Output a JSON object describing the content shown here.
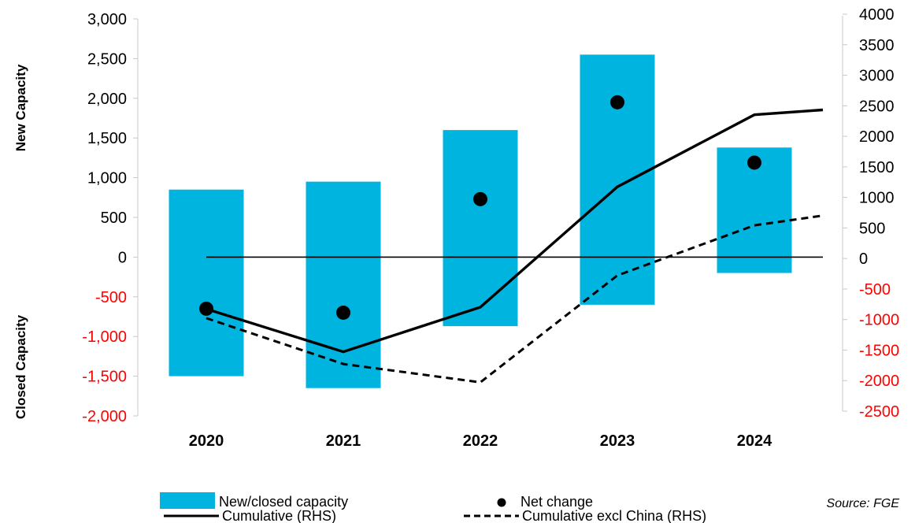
{
  "chart_data": {
    "type": "bar",
    "categories": [
      "2020",
      "2021",
      "2022",
      "2023",
      "2024"
    ],
    "bars": {
      "name": "New/closed capacity",
      "high": [
        850,
        950,
        1600,
        2550,
        1380
      ],
      "low": [
        -1500,
        -1650,
        -870,
        -600,
        -200
      ],
      "color": "#00B4E0"
    },
    "net_change": {
      "name": "Net change",
      "values": [
        -650,
        -700,
        730,
        1950,
        1190
      ]
    },
    "cumulative": {
      "name": "Cumulative (RHS)",
      "values": [
        -750,
        -1450,
        -720,
        1250,
        2430
      ],
      "end_value": 2510
    },
    "cumulative_excl_china": {
      "name": "Cumulative excl China (RHS)",
      "values": [
        -900,
        -1650,
        -1950,
        -200,
        620
      ],
      "end_value": 780
    },
    "left_axis": {
      "ticks": [
        "3,000",
        "2,500",
        "2,000",
        "1,500",
        "1,000",
        "500",
        "0",
        "-500",
        "-1,000",
        "-1,500",
        "-2,000"
      ],
      "tick_values": [
        3000,
        2500,
        2000,
        1500,
        1000,
        500,
        0,
        -500,
        -1000,
        -1500,
        -2000
      ],
      "ylim": [
        -2000,
        3000
      ],
      "label_positive": "New Capacity",
      "label_negative": "Closed Capacity",
      "negative_color": "#FF0000"
    },
    "right_axis": {
      "ticks": [
        "4000",
        "3500",
        "3000",
        "2500",
        "2000",
        "1500",
        "1000",
        "500",
        "0",
        "-500",
        "-1000",
        "-1500",
        "-2000",
        "-2500"
      ],
      "tick_values": [
        4000,
        3500,
        3000,
        2500,
        2000,
        1500,
        1000,
        500,
        0,
        -500,
        -1000,
        -1500,
        -2000,
        -2500
      ],
      "ylim": [
        -2500,
        4000
      ],
      "negative_color": "#FF0000"
    },
    "legend_position": "bottom",
    "source": "Source: FGE"
  }
}
